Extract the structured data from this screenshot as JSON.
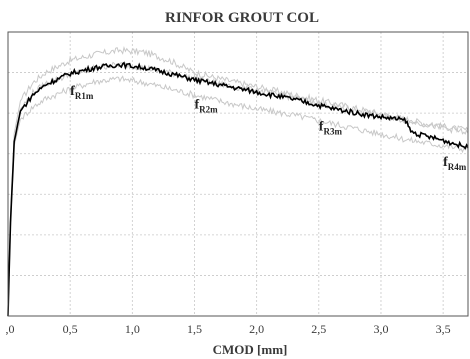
{
  "chart_data": {
    "type": "line",
    "title": "RINFOR GROUT COL",
    "xlabel": "CMOD [mm]",
    "ylabel": "",
    "xlim": [
      0,
      3.7
    ],
    "ylim": [
      0,
      7
    ],
    "grid": true,
    "x_ticks": [
      {
        "value": 0.0,
        "label": ",0"
      },
      {
        "value": 0.5,
        "label": "0,5"
      },
      {
        "value": 1.0,
        "label": "1,0"
      },
      {
        "value": 1.5,
        "label": "1,5"
      },
      {
        "value": 2.0,
        "label": "2,0"
      },
      {
        "value": 2.5,
        "label": "2,5"
      },
      {
        "value": 3.0,
        "label": "3,0"
      },
      {
        "value": 3.5,
        "label": "3,5"
      }
    ],
    "y_gridlines": [
      1,
      2,
      3,
      4,
      5,
      6
    ],
    "series": [
      {
        "role": "specimen",
        "color": "#c8c8c8",
        "x": [
          0,
          0.02,
          0.05,
          0.1,
          0.2,
          0.3,
          0.5,
          0.7,
          0.9,
          1.1,
          1.3,
          1.5,
          1.7,
          2.0,
          2.3,
          2.6,
          2.9,
          3.2,
          3.4,
          3.6,
          3.7
        ],
        "y": [
          0,
          2.5,
          4.5,
          5.3,
          5.75,
          6.0,
          6.3,
          6.45,
          6.55,
          6.5,
          6.3,
          6.0,
          5.85,
          5.65,
          5.45,
          5.25,
          5.05,
          4.85,
          4.72,
          4.62,
          4.58
        ]
      },
      {
        "role": "specimen",
        "color": "#c8c8c8",
        "x": [
          0,
          0.02,
          0.05,
          0.1,
          0.2,
          0.3,
          0.5,
          0.7,
          0.9,
          1.1,
          1.3,
          1.5,
          1.7,
          2.0,
          2.3,
          2.6,
          2.9,
          3.2,
          3.4,
          3.6,
          3.7
        ],
        "y": [
          0,
          2.2,
          4.2,
          4.85,
          5.15,
          5.35,
          5.6,
          5.78,
          5.85,
          5.75,
          5.6,
          5.45,
          5.3,
          5.1,
          4.95,
          4.75,
          4.55,
          4.35,
          4.25,
          4.15,
          4.1
        ]
      },
      {
        "role": "specimen",
        "color": "#c8c8c8",
        "x": [
          0,
          0.02,
          0.05,
          0.1,
          0.2,
          0.3,
          0.5,
          0.7,
          0.9,
          1.1,
          1.3,
          1.5,
          1.7,
          2.0,
          2.3,
          2.6,
          2.9,
          3.2,
          3.4,
          3.6,
          3.7
        ],
        "y": [
          0,
          2.4,
          4.35,
          5.1,
          5.5,
          5.72,
          5.95,
          6.12,
          6.2,
          6.12,
          6.0,
          5.85,
          5.72,
          5.55,
          5.38,
          5.18,
          5.0,
          4.82,
          4.7,
          4.58,
          4.5
        ]
      },
      {
        "role": "mean",
        "color": "#000000",
        "x": [
          0,
          0.02,
          0.05,
          0.1,
          0.2,
          0.3,
          0.5,
          0.7,
          0.9,
          1.1,
          1.3,
          1.5,
          1.7,
          2.0,
          2.3,
          2.6,
          2.9,
          3.2,
          3.24,
          3.3,
          3.5,
          3.7
        ],
        "y": [
          0,
          2.3,
          4.3,
          5.05,
          5.45,
          5.7,
          5.98,
          6.12,
          6.2,
          6.12,
          5.98,
          5.82,
          5.7,
          5.52,
          5.34,
          5.12,
          4.95,
          4.82,
          4.55,
          4.48,
          4.33,
          4.15
        ]
      }
    ],
    "annotations": [
      {
        "x": 0.5,
        "y": 5.45,
        "base": "f",
        "sub": "R1m"
      },
      {
        "x": 1.5,
        "y": 5.12,
        "base": "f",
        "sub": "R2m"
      },
      {
        "x": 2.5,
        "y": 4.57,
        "base": "f",
        "sub": "R3m"
      },
      {
        "x": 3.5,
        "y": 3.7,
        "base": "f",
        "sub": "R4m"
      }
    ]
  }
}
